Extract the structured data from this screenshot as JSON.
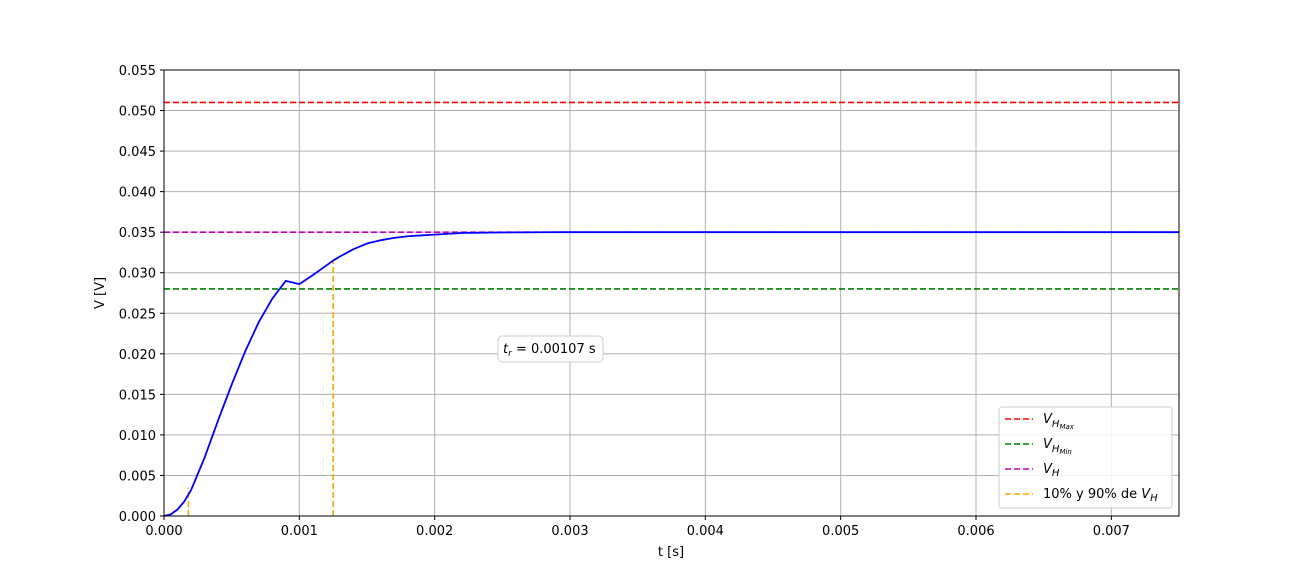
{
  "chart_data": {
    "type": "line",
    "xlabel": "t [s]",
    "ylabel": "V [V]",
    "xlim": [
      0,
      0.0075
    ],
    "ylim": [
      0,
      0.055
    ],
    "x_ticks": [
      0.0,
      0.001,
      0.002,
      0.003,
      0.004,
      0.005,
      0.006,
      0.007
    ],
    "x_tick_labels": [
      "0.000",
      "0.001",
      "0.002",
      "0.003",
      "0.004",
      "0.005",
      "0.006",
      "0.007"
    ],
    "y_ticks": [
      0.0,
      0.005,
      0.01,
      0.015,
      0.02,
      0.025,
      0.03,
      0.035,
      0.04,
      0.045,
      0.05,
      0.055
    ],
    "y_tick_labels": [
      "0.000",
      "0.005",
      "0.010",
      "0.015",
      "0.020",
      "0.025",
      "0.030",
      "0.035",
      "0.040",
      "0.045",
      "0.050",
      "0.055"
    ],
    "grid": true,
    "legend_position": "lower-right",
    "series": [
      {
        "color": "#0000ff",
        "style": "solid",
        "x": [
          0,
          5e-05,
          0.0001,
          0.00015,
          0.0002,
          0.0003,
          0.0004,
          0.0005,
          0.0006,
          0.0007,
          0.0008,
          0.0009,
          0.001,
          0.0011,
          0.0012,
          0.00125,
          0.0013,
          0.0014,
          0.0015,
          0.0016,
          0.0017,
          0.0018,
          0.0019,
          0.002,
          0.0022,
          0.0024,
          0.0026,
          0.0028,
          0.003,
          0.0035,
          0.004,
          0.005,
          0.006,
          0.007,
          0.0075
        ],
        "y": [
          0,
          0.0002,
          0.0008,
          0.0018,
          0.0032,
          0.0072,
          0.0118,
          0.0162,
          0.0203,
          0.0239,
          0.0268,
          0.029,
          0.0286,
          0.0297,
          0.0309,
          0.0315,
          0.032,
          0.0329,
          0.0336,
          0.034,
          0.0343,
          0.0345,
          0.0346,
          0.0347,
          0.0349,
          0.03495,
          0.03498,
          0.03499,
          0.035,
          0.035,
          0.035,
          0.035,
          0.035,
          0.035,
          0.035
        ]
      }
    ],
    "hlines": [
      {
        "label_main": "V",
        "label_sub": "H",
        "label_subsub": "Max",
        "y": 0.051,
        "color": "#ff0000"
      },
      {
        "label_main": "V",
        "label_sub": "H",
        "label_subsub": "Min",
        "y": 0.028,
        "color": "#008000"
      },
      {
        "label_main": "V",
        "label_sub": "H",
        "label_subsub": "",
        "y": 0.035,
        "color": "#bf00bf"
      }
    ],
    "vlines": [
      {
        "x": 0.00018,
        "y": 0.0035,
        "color": "#ffa500"
      },
      {
        "x": 0.00125,
        "y": 0.0315,
        "color": "#ffa500"
      }
    ],
    "vlines_legend": {
      "prefix": "10% y 90% de ",
      "main": "V",
      "sub": "H",
      "color": "#ffa500"
    },
    "annotation": {
      "main": "t",
      "sub": "r",
      "text": " = 0.00107 s",
      "x": 0.00285,
      "y": 0.0205
    }
  }
}
